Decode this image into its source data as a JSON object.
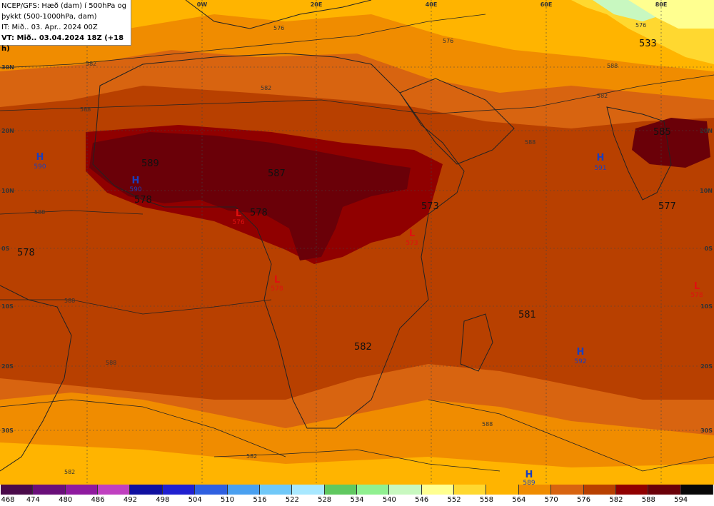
{
  "info": {
    "line1": "NCEP/GFS: Hæð (dam) í 500hPa og",
    "line2": "þykkt (500-1000hPa, dam)",
    "line3": "IT: Mið.. 03. Apr.. 2024 00Z",
    "line4": "VT: Mið.. 03.04.2024 18Z (+18 h)"
  },
  "lon_labels": [
    "0W",
    "20E",
    "40E",
    "60E",
    "80E"
  ],
  "lat_labels_left": [
    "30N",
    "20N",
    "10N",
    "0S",
    "10S",
    "20S",
    "30S"
  ],
  "lat_labels_right": [
    "20N",
    "10N",
    "0S",
    "10S",
    "20S",
    "30S"
  ],
  "map_values": [
    "533",
    "585",
    "589",
    "587",
    "578",
    "578",
    "573",
    "577",
    "578",
    "581",
    "582"
  ],
  "contour_labels": [
    "576",
    "582",
    "582",
    "588",
    "588",
    "582",
    "588",
    "576",
    "588",
    "588",
    "588",
    "582",
    "582",
    "588",
    "576"
  ],
  "highs": [
    {
      "letter": "H",
      "value": "590"
    },
    {
      "letter": "H",
      "value": "590"
    },
    {
      "letter": "H",
      "value": "591"
    },
    {
      "letter": "H",
      "value": "592"
    },
    {
      "letter": "H",
      "value": "589"
    }
  ],
  "lows": [
    {
      "letter": "L",
      "value": "576"
    },
    {
      "letter": "L",
      "value": "573"
    },
    {
      "letter": "L",
      "value": "578"
    },
    {
      "letter": "L",
      "value": "578"
    }
  ],
  "colorbar": {
    "labels": [
      "468",
      "474",
      "480",
      "486",
      "492",
      "498",
      "504",
      "510",
      "516",
      "522",
      "528",
      "534",
      "540",
      "546",
      "552",
      "558",
      "564",
      "570",
      "576",
      "582",
      "588",
      "594"
    ],
    "colors": [
      "#4a0a4a",
      "#6a0f7a",
      "#8f1a9f",
      "#c040c0",
      "#1010a0",
      "#2020d0",
      "#2f60e0",
      "#4aa0f0",
      "#70c8f8",
      "#a8e8ff",
      "#60c860",
      "#90f090",
      "#c8f8c0",
      "#ffff90",
      "#ffd830",
      "#ffb400",
      "#f08c00",
      "#d86410",
      "#b84000",
      "#900000",
      "#6a0008",
      "#080808"
    ]
  },
  "colors": {
    "band_546": "#ffff90",
    "band_552": "#ffd830",
    "band_558": "#ffb400",
    "band_564": "#f08c00",
    "band_570": "#d86410",
    "band_576": "#b84000",
    "band_582": "#900000",
    "band_588": "#6a0008",
    "high": "#1a3fbf",
    "low": "#e01010"
  }
}
